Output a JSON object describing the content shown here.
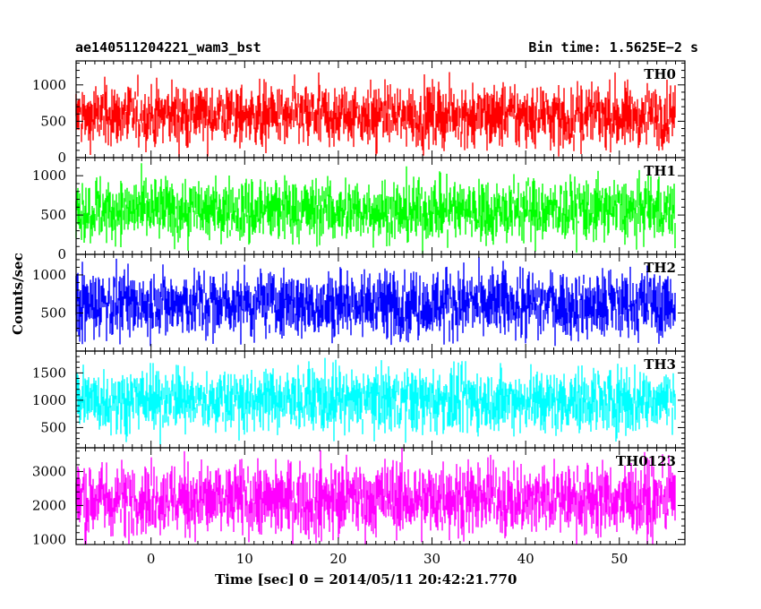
{
  "chart_data": {
    "type": "line",
    "title_left": "ae140511204221_wam3_bst",
    "title_right": "Bin time: 1.5625E−2 s",
    "xlabel": "Time [sec] 0 = 2014/05/11 20:42:21.770",
    "ylabel": "Counts/sec",
    "xlim": [
      -8,
      57
    ],
    "x_ticks": [
      0,
      10,
      20,
      30,
      40,
      50
    ],
    "data_x_range": [
      -8,
      56
    ],
    "panels": [
      {
        "name": "TH0",
        "color": "#ff0000",
        "ylim": [
          0,
          1330
        ],
        "y_ticks": [
          0,
          500,
          1000
        ],
        "mean": 580,
        "spread": 180,
        "min": 0,
        "max": 1330
      },
      {
        "name": "TH1",
        "color": "#00ff00",
        "ylim": [
          0,
          1230
        ],
        "y_ticks": [
          0,
          500,
          1000
        ],
        "mean": 560,
        "spread": 170,
        "min": 0,
        "max": 1230
      },
      {
        "name": "TH2",
        "color": "#0000ff",
        "ylim": [
          0,
          1270
        ],
        "y_ticks": [
          500,
          1000
        ],
        "mean": 620,
        "spread": 190,
        "min": 0,
        "max": 1270
      },
      {
        "name": "TH3",
        "color": "#00ffff",
        "ylim": [
          130,
          1900
        ],
        "y_ticks": [
          500,
          1000,
          1500
        ],
        "mean": 1000,
        "spread": 250,
        "min": 130,
        "max": 1900
      },
      {
        "name": "TH0123",
        "color": "#ff00ff",
        "ylim": [
          850,
          3700
        ],
        "y_ticks": [
          1000,
          2000,
          3000
        ],
        "mean": 2200,
        "spread": 450,
        "min": 850,
        "max": 3700
      }
    ]
  }
}
